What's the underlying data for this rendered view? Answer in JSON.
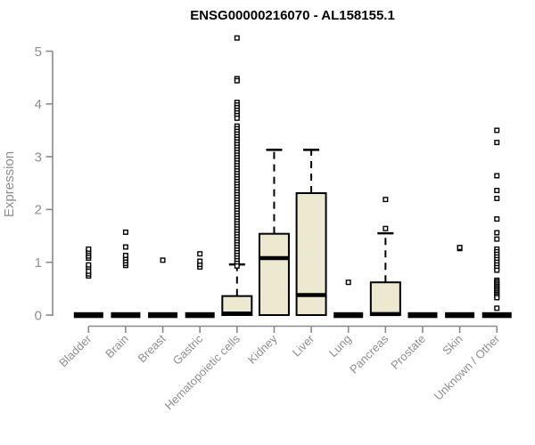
{
  "page": {
    "background": "#ffffff"
  },
  "chart_data": {
    "type": "boxplot",
    "title": "ENSG00000216070 - AL158155.1",
    "xlabel": "",
    "ylabel": "Expression",
    "ylim": [
      0,
      5.3
    ],
    "yticks": [
      0,
      1,
      2,
      3,
      4,
      5
    ],
    "grid": false,
    "legend": "none",
    "colors": {
      "box_fill": "#EDE8D0",
      "box_stroke": "#000000",
      "median": "#000000",
      "whisker": "#000000",
      "outlier_fill": "#ffffff",
      "outlier_stroke": "#000000",
      "axis": "#8a8a8a",
      "tick_label": "#8e8e8e",
      "title": "#000000"
    },
    "categories": [
      "Bladder",
      "Brain",
      "Breast",
      "Gastric",
      "Hematopoietic cells",
      "Kidney",
      "Liver",
      "Lung",
      "Pancreas",
      "Prostate",
      "Skin",
      "Unknown / Other"
    ],
    "series": [
      {
        "name": "Bladder",
        "q1": 0,
        "median": 0,
        "q3": 0,
        "whisker_low": 0,
        "whisker_high": 0,
        "outliers": [
          0.74,
          0.78,
          0.83,
          0.91,
          0.95,
          1.08,
          1.12,
          1.17,
          1.21,
          1.25
        ]
      },
      {
        "name": "Brain",
        "q1": 0,
        "median": 0,
        "q3": 0,
        "whisker_low": 0,
        "whisker_high": 0,
        "outliers": [
          0.94,
          0.98,
          1.03,
          1.08,
          1.13,
          1.29,
          1.57
        ]
      },
      {
        "name": "Breast",
        "q1": 0,
        "median": 0,
        "q3": 0,
        "whisker_low": 0,
        "whisker_high": 0,
        "outliers": [
          1.04
        ]
      },
      {
        "name": "Gastric",
        "q1": 0,
        "median": 0,
        "q3": 0,
        "whisker_low": 0,
        "whisker_high": 0,
        "outliers": [
          0.91,
          0.96,
          1.02,
          1.16
        ]
      },
      {
        "name": "Hematopoietic cells",
        "q1": 0,
        "median": 0.03,
        "q3": 0.36,
        "whisker_low": 0,
        "whisker_high": 0.96,
        "outliers": [
          5.25,
          4.48,
          4.44,
          4.03,
          3.98,
          3.93,
          3.88,
          3.83,
          3.78,
          3.73,
          3.58,
          3.53,
          3.48,
          3.43,
          3.38,
          3.33,
          3.28,
          3.23,
          3.18,
          3.13,
          3.08,
          3.03,
          2.98,
          2.93,
          2.88,
          2.83,
          2.78,
          2.73,
          2.68,
          2.63,
          2.58,
          2.53,
          2.48,
          2.43,
          2.38,
          2.33,
          2.28,
          2.23,
          2.18,
          2.13,
          2.08,
          2.03,
          1.98,
          1.93,
          1.88,
          1.83,
          1.78,
          1.73,
          1.68,
          1.63,
          1.58,
          1.53,
          1.48,
          1.43,
          1.38,
          1.33,
          1.28,
          1.23,
          1.18,
          1.13,
          1.08,
          1.03,
          0.98,
          0.93
        ]
      },
      {
        "name": "Kidney",
        "q1": 0,
        "median": 1.08,
        "q3": 1.54,
        "whisker_low": 0,
        "whisker_high": 3.13,
        "outliers": []
      },
      {
        "name": "Liver",
        "q1": 0,
        "median": 0.38,
        "q3": 2.31,
        "whisker_low": 0,
        "whisker_high": 3.13,
        "outliers": []
      },
      {
        "name": "Lung",
        "q1": 0,
        "median": 0,
        "q3": 0,
        "whisker_low": 0,
        "whisker_high": 0,
        "outliers": [
          0.62
        ]
      },
      {
        "name": "Pancreas",
        "q1": 0,
        "median": 0.02,
        "q3": 0.62,
        "whisker_low": 0,
        "whisker_high": 1.55,
        "outliers": [
          1.64,
          2.19
        ]
      },
      {
        "name": "Prostate",
        "q1": 0,
        "median": 0,
        "q3": 0,
        "whisker_low": 0,
        "whisker_high": 0,
        "outliers": []
      },
      {
        "name": "Skin",
        "q1": 0,
        "median": 0,
        "q3": 0,
        "whisker_low": 0,
        "whisker_high": 0,
        "outliers": [
          1.26,
          1.28
        ]
      },
      {
        "name": "Unknown / Other",
        "q1": 0,
        "median": 0,
        "q3": 0,
        "whisker_low": 0,
        "whisker_high": 0,
        "outliers": [
          3.5,
          3.27,
          2.64,
          2.36,
          2.21,
          1.82,
          1.56,
          1.44,
          1.25,
          1.2,
          1.15,
          1.1,
          1.05,
          1.0,
          0.95,
          0.9,
          0.85,
          0.66,
          0.63,
          0.6,
          0.57,
          0.54,
          0.51,
          0.48,
          0.45,
          0.42,
          0.39,
          0.36,
          0.33,
          0.13
        ]
      }
    ]
  }
}
